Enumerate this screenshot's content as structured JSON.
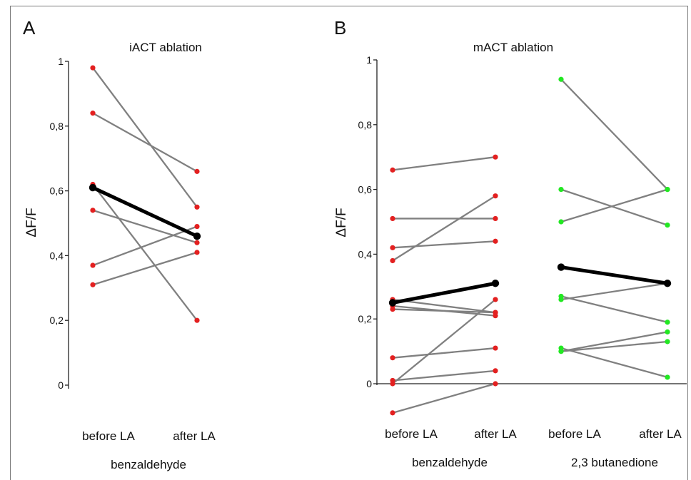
{
  "chart_data": [
    {
      "type": "line",
      "panel_label": "A",
      "title": "iACT ablation",
      "ylabel": "ΔF/F",
      "ylim": [
        0,
        1
      ],
      "y_ticks": [
        "0",
        "0,2",
        "0,4",
        "0,6",
        "0,8",
        "1"
      ],
      "categories": [
        "before LA",
        "after LA"
      ],
      "group_labels": [
        "benzaldehyde"
      ],
      "point_color": "#e32020",
      "line_color": "#808080",
      "mean_color": "#000000",
      "series": [
        {
          "values": [
            0.98,
            0.55
          ]
        },
        {
          "values": [
            0.84,
            0.66
          ]
        },
        {
          "values": [
            0.62,
            0.2
          ]
        },
        {
          "values": [
            0.54,
            0.44
          ]
        },
        {
          "values": [
            0.37,
            0.49
          ]
        },
        {
          "values": [
            0.31,
            0.41
          ]
        }
      ],
      "mean": {
        "values": [
          0.61,
          0.46
        ]
      }
    },
    {
      "type": "line",
      "panel_label": "B",
      "title": "mACT ablation",
      "ylabel": "ΔF/F",
      "ylim": [
        -0.1,
        1
      ],
      "y_ticks": [
        "0",
        "0,2",
        "0,4",
        "0,6",
        "0,8",
        "1"
      ],
      "categories": [
        "before LA",
        "after LA",
        "before LA",
        "after LA"
      ],
      "group_labels": [
        "benzaldehyde",
        "2,3 butanedione"
      ],
      "groups": [
        {
          "name": "benzaldehyde",
          "point_color": "#e32020",
          "series": [
            {
              "values": [
                0.66,
                0.7
              ]
            },
            {
              "values": [
                0.51,
                0.51
              ]
            },
            {
              "values": [
                0.42,
                0.44
              ]
            },
            {
              "values": [
                0.38,
                0.58
              ]
            },
            {
              "values": [
                0.26,
                0.22
              ]
            },
            {
              "values": [
                0.24,
                0.21
              ]
            },
            {
              "values": [
                0.23,
                0.22
              ]
            },
            {
              "values": [
                0.08,
                0.11
              ]
            },
            {
              "values": [
                0.01,
                0.04
              ]
            },
            {
              "values": [
                0.0,
                0.26
              ]
            },
            {
              "values": [
                -0.09,
                0.0
              ]
            }
          ],
          "mean": {
            "values": [
              0.25,
              0.31
            ]
          }
        },
        {
          "name": "2,3 butanedione",
          "point_color": "#22e822",
          "series": [
            {
              "values": [
                0.94,
                0.6
              ]
            },
            {
              "values": [
                0.6,
                0.49
              ]
            },
            {
              "values": [
                0.5,
                0.6
              ]
            },
            {
              "values": [
                0.27,
                0.19
              ]
            },
            {
              "values": [
                0.26,
                0.31
              ]
            },
            {
              "values": [
                0.1,
                0.16
              ]
            },
            {
              "values": [
                0.1,
                0.13
              ]
            },
            {
              "values": [
                0.11,
                0.02
              ]
            }
          ],
          "mean": {
            "values": [
              0.36,
              0.31
            ]
          }
        }
      ],
      "line_color": "#808080",
      "mean_color": "#000000"
    }
  ]
}
